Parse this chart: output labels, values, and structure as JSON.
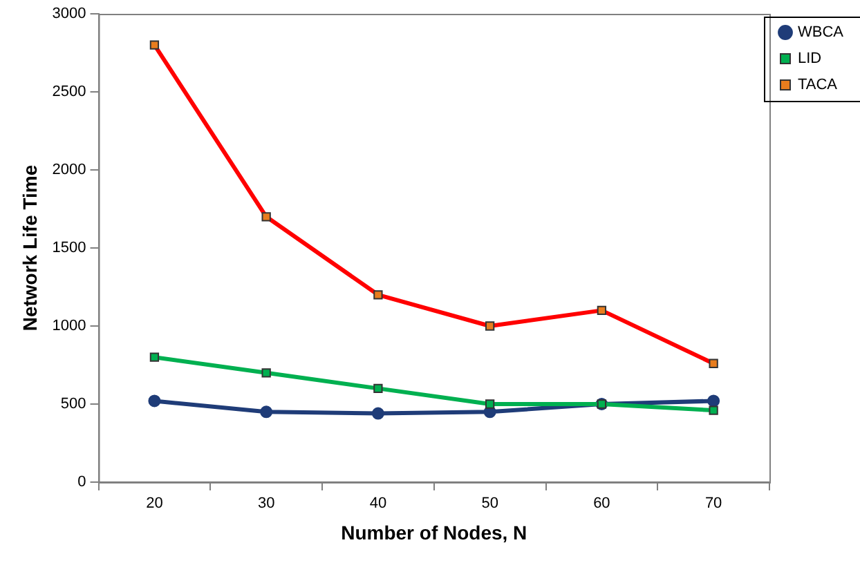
{
  "chart_data": {
    "type": "line",
    "xlabel": "Number of Nodes, N",
    "ylabel": "Network Life Time",
    "categories": [
      "20",
      "30",
      "40",
      "50",
      "60",
      "70"
    ],
    "ylim": [
      0,
      3000
    ],
    "yticks": [
      0,
      500,
      1000,
      1500,
      2000,
      2500,
      3000
    ],
    "grid": false,
    "legend": "top right",
    "line_style": "solid",
    "series": [
      {
        "name": "WBCA",
        "color": "#1f3c78",
        "marker": "circle",
        "values": [
          520,
          450,
          440,
          450,
          500,
          520
        ]
      },
      {
        "name": "LID",
        "color": "#00b050",
        "marker": "square",
        "values": [
          800,
          700,
          600,
          500,
          500,
          460
        ]
      },
      {
        "name": "TACA",
        "color": "#ff0000",
        "marker": "square",
        "values": [
          2800,
          1700,
          1200,
          1000,
          1100,
          760
        ]
      }
    ]
  }
}
